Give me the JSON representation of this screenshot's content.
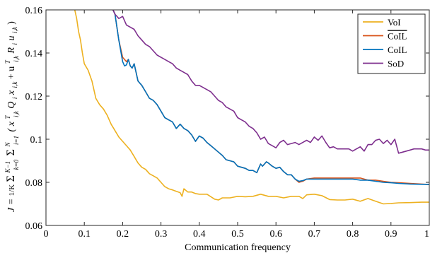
{
  "chart_data": {
    "type": "line",
    "xlabel": "Communication frequency",
    "ylabel": "J = (1/K) Σ_{k=0}^{K−1} Σ_{i=1}^{N} ( x_{i,k}^T Q_i x_{i,k} + u_{i,k}^T R_i u_{i,k} )",
    "xlim": [
      0,
      1
    ],
    "ylim": [
      0.06,
      0.16
    ],
    "xticks": [
      0,
      0.1,
      0.2,
      0.3,
      0.4,
      0.5,
      0.6,
      0.7,
      0.8,
      0.9,
      1
    ],
    "xtick_labels": [
      "0",
      "0.1",
      "0.2",
      "0.3",
      "0.4",
      "0.5",
      "0.6",
      "0.7",
      "0.8",
      "0.9",
      "1"
    ],
    "yticks": [
      0.06,
      0.08,
      0.1,
      0.12,
      0.14,
      0.16
    ],
    "ytick_labels": [
      "0.06",
      "0.08",
      "0.1",
      "0.12",
      "0.14",
      "0.16"
    ],
    "grid": false,
    "legend_position": "top-right",
    "series": [
      {
        "name": "VoI",
        "color": "#EDB120",
        "x": [
          0.075,
          0.08,
          0.085,
          0.09,
          0.095,
          0.1,
          0.11,
          0.12,
          0.13,
          0.14,
          0.15,
          0.16,
          0.17,
          0.18,
          0.19,
          0.2,
          0.21,
          0.22,
          0.23,
          0.24,
          0.25,
          0.26,
          0.27,
          0.28,
          0.29,
          0.3,
          0.31,
          0.32,
          0.33,
          0.34,
          0.35,
          0.355,
          0.36,
          0.37,
          0.38,
          0.39,
          0.4,
          0.42,
          0.44,
          0.45,
          0.46,
          0.48,
          0.5,
          0.52,
          0.54,
          0.56,
          0.58,
          0.6,
          0.62,
          0.64,
          0.66,
          0.67,
          0.68,
          0.7,
          0.72,
          0.74,
          0.76,
          0.78,
          0.8,
          0.82,
          0.84,
          0.86,
          0.88,
          0.9,
          0.92,
          0.95,
          0.98,
          1.0
        ],
        "values": [
          0.16,
          0.156,
          0.15,
          0.146,
          0.14,
          0.135,
          0.132,
          0.127,
          0.119,
          0.116,
          0.114,
          0.111,
          0.107,
          0.104,
          0.101,
          0.099,
          0.097,
          0.095,
          0.092,
          0.089,
          0.087,
          0.086,
          0.084,
          0.083,
          0.082,
          0.08,
          0.078,
          0.077,
          0.0765,
          0.0758,
          0.0752,
          0.0735,
          0.077,
          0.0755,
          0.0755,
          0.0748,
          0.0745,
          0.0745,
          0.0722,
          0.0718,
          0.0728,
          0.0728,
          0.0735,
          0.0733,
          0.0735,
          0.0745,
          0.0735,
          0.0735,
          0.0728,
          0.0735,
          0.0735,
          0.0725,
          0.0742,
          0.0745,
          0.0738,
          0.072,
          0.0718,
          0.0718,
          0.0722,
          0.0712,
          0.0725,
          0.0712,
          0.07,
          0.0702,
          0.0705,
          0.0706,
          0.0708,
          0.0708
        ]
      },
      {
        "name": "CoIL (overlined)",
        "color": "#D95319",
        "x": [
          0.175,
          0.18,
          0.185,
          0.19,
          0.2,
          0.21,
          0.215,
          0.22,
          0.225,
          0.23,
          0.24,
          0.25,
          0.26,
          0.27,
          0.28,
          0.29,
          0.3,
          0.31,
          0.32,
          0.33,
          0.34,
          0.35,
          0.36,
          0.37,
          0.38,
          0.39,
          0.4,
          0.41,
          0.42,
          0.43,
          0.44,
          0.45,
          0.46,
          0.47,
          0.48,
          0.49,
          0.5,
          0.51,
          0.52,
          0.53,
          0.54,
          0.55,
          0.555,
          0.56,
          0.565,
          0.57,
          0.575,
          0.58,
          0.59,
          0.6,
          0.61,
          0.62,
          0.63,
          0.64,
          0.65,
          0.66,
          0.67,
          0.68,
          0.7,
          0.72,
          0.74,
          0.76,
          0.78,
          0.8,
          0.82,
          0.84,
          0.86,
          0.88,
          0.9,
          0.92,
          0.95,
          1.0
        ],
        "values": [
          0.16,
          0.158,
          0.152,
          0.146,
          0.138,
          0.136,
          0.137,
          0.134,
          0.133,
          0.135,
          0.127,
          0.125,
          0.122,
          0.119,
          0.118,
          0.116,
          0.113,
          0.11,
          0.109,
          0.108,
          0.105,
          0.107,
          0.105,
          0.104,
          0.102,
          0.099,
          0.1015,
          0.1005,
          0.0985,
          0.097,
          0.0955,
          0.094,
          0.0925,
          0.0905,
          0.09,
          0.0895,
          0.0875,
          0.087,
          0.0865,
          0.0855,
          0.0855,
          0.0845,
          0.0865,
          0.0885,
          0.0875,
          0.0885,
          0.0895,
          0.089,
          0.0875,
          0.0865,
          0.087,
          0.085,
          0.0835,
          0.0835,
          0.0815,
          0.08,
          0.0805,
          0.0815,
          0.082,
          0.082,
          0.082,
          0.082,
          0.082,
          0.082,
          0.082,
          0.081,
          0.081,
          0.0805,
          0.08,
          0.0798,
          0.0795,
          0.079
        ]
      },
      {
        "name": "CoIL",
        "color": "#0072BD",
        "x": [
          0.175,
          0.18,
          0.185,
          0.19,
          0.2,
          0.205,
          0.21,
          0.215,
          0.22,
          0.225,
          0.23,
          0.24,
          0.25,
          0.26,
          0.27,
          0.28,
          0.29,
          0.3,
          0.31,
          0.32,
          0.33,
          0.34,
          0.35,
          0.36,
          0.37,
          0.38,
          0.39,
          0.4,
          0.41,
          0.42,
          0.43,
          0.44,
          0.45,
          0.46,
          0.47,
          0.48,
          0.49,
          0.5,
          0.51,
          0.52,
          0.53,
          0.54,
          0.55,
          0.555,
          0.56,
          0.565,
          0.57,
          0.575,
          0.58,
          0.59,
          0.6,
          0.61,
          0.62,
          0.63,
          0.64,
          0.65,
          0.66,
          0.67,
          0.68,
          0.7,
          0.72,
          0.74,
          0.76,
          0.78,
          0.8,
          0.82,
          0.84,
          0.86,
          0.88,
          0.9,
          0.92,
          0.95,
          1.0
        ],
        "values": [
          0.16,
          0.158,
          0.152,
          0.146,
          0.136,
          0.134,
          0.1345,
          0.137,
          0.134,
          0.133,
          0.135,
          0.127,
          0.125,
          0.122,
          0.119,
          0.118,
          0.116,
          0.113,
          0.11,
          0.109,
          0.108,
          0.105,
          0.107,
          0.105,
          0.104,
          0.102,
          0.099,
          0.1015,
          0.1005,
          0.0985,
          0.097,
          0.0955,
          0.094,
          0.0925,
          0.0905,
          0.09,
          0.0895,
          0.0875,
          0.087,
          0.0865,
          0.0855,
          0.0855,
          0.0845,
          0.0865,
          0.0885,
          0.0875,
          0.0885,
          0.0895,
          0.089,
          0.0875,
          0.0865,
          0.087,
          0.085,
          0.0835,
          0.0835,
          0.0815,
          0.0805,
          0.0808,
          0.0815,
          0.0815,
          0.0815,
          0.0815,
          0.0815,
          0.0815,
          0.0815,
          0.081,
          0.081,
          0.0805,
          0.08,
          0.0798,
          0.0795,
          0.0792,
          0.079
        ]
      },
      {
        "name": "SoD",
        "color": "#7E2F8E",
        "x": [
          0.175,
          0.18,
          0.19,
          0.2,
          0.21,
          0.22,
          0.23,
          0.24,
          0.25,
          0.26,
          0.27,
          0.28,
          0.29,
          0.3,
          0.31,
          0.32,
          0.33,
          0.34,
          0.35,
          0.36,
          0.37,
          0.38,
          0.39,
          0.4,
          0.41,
          0.42,
          0.43,
          0.44,
          0.45,
          0.46,
          0.47,
          0.48,
          0.49,
          0.5,
          0.51,
          0.52,
          0.53,
          0.54,
          0.55,
          0.56,
          0.57,
          0.58,
          0.59,
          0.6,
          0.61,
          0.62,
          0.63,
          0.64,
          0.65,
          0.66,
          0.67,
          0.68,
          0.69,
          0.7,
          0.71,
          0.72,
          0.73,
          0.74,
          0.75,
          0.76,
          0.77,
          0.78,
          0.79,
          0.8,
          0.81,
          0.82,
          0.83,
          0.84,
          0.85,
          0.86,
          0.87,
          0.88,
          0.89,
          0.9,
          0.91,
          0.92,
          0.93,
          0.94,
          0.95,
          0.96,
          0.97,
          0.98,
          0.99,
          1.0
        ],
        "values": [
          0.16,
          0.158,
          0.156,
          0.157,
          0.153,
          0.152,
          0.151,
          0.148,
          0.146,
          0.144,
          0.143,
          0.141,
          0.139,
          0.138,
          0.137,
          0.136,
          0.135,
          0.133,
          0.132,
          0.131,
          0.13,
          0.127,
          0.125,
          0.125,
          0.124,
          0.123,
          0.122,
          0.12,
          0.118,
          0.117,
          0.115,
          0.114,
          0.113,
          0.11,
          0.109,
          0.108,
          0.106,
          0.105,
          0.103,
          0.1,
          0.101,
          0.098,
          0.097,
          0.096,
          0.0985,
          0.0995,
          0.0975,
          0.098,
          0.0985,
          0.0975,
          0.0985,
          0.0995,
          0.0985,
          0.101,
          0.0995,
          0.1015,
          0.0985,
          0.096,
          0.0965,
          0.0955,
          0.0955,
          0.0955,
          0.0955,
          0.0945,
          0.0955,
          0.0965,
          0.0945,
          0.0975,
          0.0975,
          0.0995,
          0.1,
          0.098,
          0.0995,
          0.0975,
          0.1,
          0.0935,
          0.094,
          0.0945,
          0.095,
          0.0955,
          0.0955,
          0.0955,
          0.095,
          0.095
        ]
      }
    ],
    "legend_entries": [
      {
        "label": "VoI",
        "color": "#EDB120",
        "overline": false
      },
      {
        "label": "CoIL",
        "color": "#D95319",
        "overline": true
      },
      {
        "label": "CoIL",
        "color": "#0072BD",
        "overline": false
      },
      {
        "label": "SoD",
        "color": "#7E2F8E",
        "overline": false
      }
    ]
  }
}
